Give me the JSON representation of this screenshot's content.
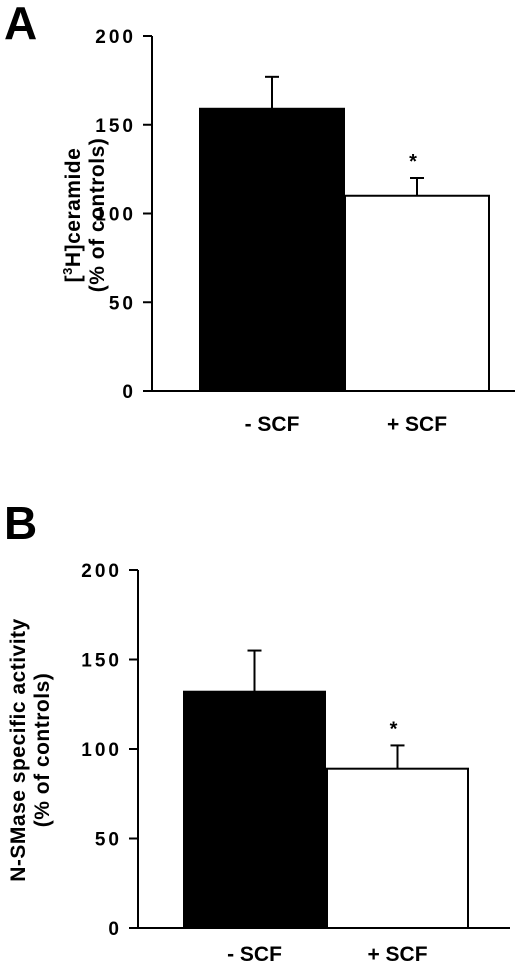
{
  "chart_data": [
    {
      "panel": "A",
      "type": "bar",
      "categories": [
        "- SCF",
        "+ SCF"
      ],
      "values": [
        159,
        110
      ],
      "errors": [
        18,
        10
      ],
      "significance": [
        "",
        "*"
      ],
      "bar_colors": [
        "#000000",
        "#ffffff"
      ],
      "ylabel_line1_prefix": "[",
      "ylabel_sup": "3",
      "ylabel_line1_suffix": "H]ceramide",
      "ylabel_line2": "(% of controls)",
      "yticks": [
        0,
        50,
        100,
        150,
        200
      ],
      "ylim": [
        0,
        200
      ],
      "grid": false
    },
    {
      "panel": "B",
      "type": "bar",
      "categories": [
        "- SCF",
        "+ SCF"
      ],
      "values": [
        132,
        89
      ],
      "errors": [
        23,
        13
      ],
      "significance": [
        "",
        "*"
      ],
      "bar_colors": [
        "#000000",
        "#ffffff"
      ],
      "ylabel_line1": "N-SMase specific activity",
      "ylabel_line2": "(% of controls)",
      "yticks": [
        0,
        50,
        100,
        150,
        200
      ],
      "ylim": [
        0,
        200
      ],
      "grid": false
    }
  ]
}
